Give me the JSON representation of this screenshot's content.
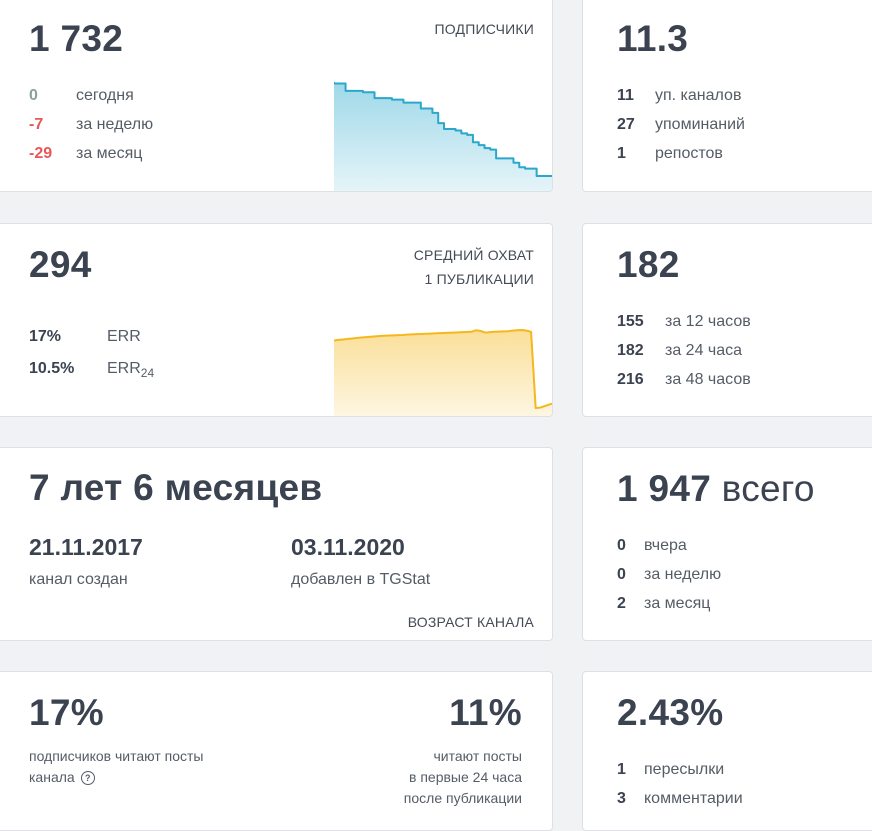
{
  "subscribers": {
    "total": "1 732",
    "caption": "ПОДПИСЧИКИ",
    "rows": [
      {
        "value": "0",
        "label": "сегодня"
      },
      {
        "value": "-7",
        "label": "за неделю"
      },
      {
        "value": "-29",
        "label": "за месяц"
      }
    ],
    "chart_color": "#29a8cc",
    "trend": [
      1.0,
      0.99,
      0.99,
      0.94,
      0.94,
      0.94,
      0.93,
      0.93,
      0.89,
      0.89,
      0.89,
      0.88,
      0.88,
      0.86,
      0.86,
      0.86,
      0.82,
      0.82,
      0.79,
      0.72,
      0.68,
      0.68,
      0.67,
      0.65,
      0.64,
      0.59,
      0.57,
      0.55,
      0.54,
      0.48,
      0.48,
      0.48,
      0.45,
      0.42,
      0.41,
      0.41,
      0.36,
      0.36,
      0.36
    ]
  },
  "citation": {
    "index": "11.3",
    "rows": [
      {
        "value": "11",
        "label": "уп. каналов"
      },
      {
        "value": "27",
        "label": "упоминаний"
      },
      {
        "value": "1",
        "label": "репостов"
      }
    ]
  },
  "reach": {
    "avg": "294",
    "caption_line1": "СРЕДНИЙ ОХВАТ",
    "caption_line2": "1 ПУБЛИКАЦИИ",
    "err_value": "17%",
    "err_label": "ERR",
    "err24_value": "10.5%",
    "err24_label": "ERR",
    "err24_sub": "24",
    "chart_color": "#f5b81c",
    "trend": [
      0.0,
      0.03,
      0.05,
      0.08,
      0.1,
      0.13,
      0.15,
      0.17,
      0.19,
      0.21,
      0.23,
      0.24,
      0.25,
      0.26,
      0.27,
      0.28,
      0.3,
      0.31,
      0.32,
      0.33,
      0.34,
      0.35,
      0.36,
      0.37,
      0.38,
      0.39,
      0.4,
      0.41,
      0.42,
      0.43,
      0.44,
      0.52,
      0.48,
      0.4,
      0.42,
      0.44,
      0.45,
      0.46,
      0.47,
      0.5,
      0.52,
      0.53,
      0.5,
      0.44,
      -3.4,
      -3.38,
      -3.3,
      -3.22,
      -3.16
    ]
  },
  "views": {
    "total": "182",
    "rows": [
      {
        "value": "155",
        "label": "за 12 часов"
      },
      {
        "value": "182",
        "label": "за 24 часа"
      },
      {
        "value": "216",
        "label": "за 48 часов"
      }
    ]
  },
  "age": {
    "title": "7 лет 6 месяцев",
    "created_date": "21.11.2017",
    "created_label": "канал создан",
    "added_date": "03.11.2020",
    "added_label": "добавлен в TGStat",
    "caption": "ВОЗРАСТ КАНАЛА"
  },
  "posts": {
    "total": "1 947",
    "total_suffix": " всего",
    "rows": [
      {
        "value": "0",
        "label": "вчера"
      },
      {
        "value": "0",
        "label": "за неделю"
      },
      {
        "value": "2",
        "label": "за месяц"
      }
    ]
  },
  "readers": {
    "left_value": "17%",
    "left_line1": "подписчиков читают посты",
    "left_line2": "канала",
    "help_icon": "question-circle-icon",
    "right_value": "11%",
    "right_line1": "читают посты",
    "right_line2": "в первые 24 часа",
    "right_line3": "после публикации"
  },
  "engagement": {
    "value": "2.43%",
    "rows": [
      {
        "value": "1",
        "label": "пересылки"
      },
      {
        "value": "3",
        "label": "комментарии"
      }
    ]
  }
}
